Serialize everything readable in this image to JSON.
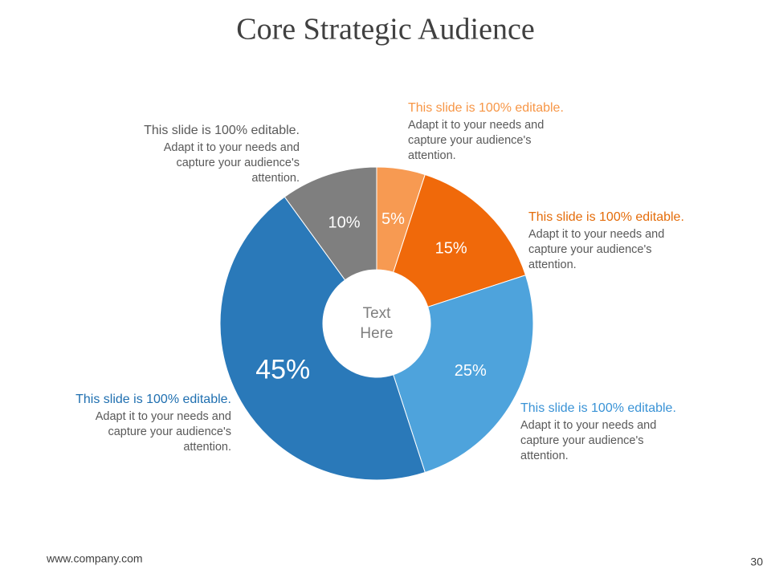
{
  "chart_data": {
    "type": "donut",
    "title": "Core Strategic Audience",
    "center_text": [
      "Text",
      "Here"
    ],
    "categories": [
      null,
      null,
      null,
      null,
      null
    ],
    "values": [
      5,
      15,
      25,
      45,
      10
    ],
    "value_labels": [
      "5%",
      "15%",
      "25%",
      "45%",
      "10%"
    ],
    "colors": [
      "#f79a52",
      "#f0690a",
      "#4ea3dc",
      "#2a79b9",
      "#7f7f7f"
    ],
    "annotations": [
      {
        "title": "This slide is 100% editable.",
        "body": [
          "Adapt it to your needs and",
          "capture your audience's",
          "attention."
        ]
      },
      {
        "title": "This slide is 100% editable.",
        "body": [
          "Adapt it to your needs and",
          "capture your audience's",
          "attention."
        ]
      },
      {
        "title": "This slide is 100% editable.",
        "body": [
          "Adapt it to your needs and",
          "capture your audience's",
          "attention."
        ]
      },
      {
        "title": "This slide is 100% editable.",
        "body": [
          "Adapt it to your needs and",
          "capture your audience's",
          "attention."
        ]
      },
      {
        "title": "This slide is 100% editable.",
        "body": [
          "Adapt it to your needs and",
          "capture your audience's",
          "attention."
        ]
      }
    ]
  },
  "footer": {
    "url": "www.company.com",
    "page": "30"
  }
}
